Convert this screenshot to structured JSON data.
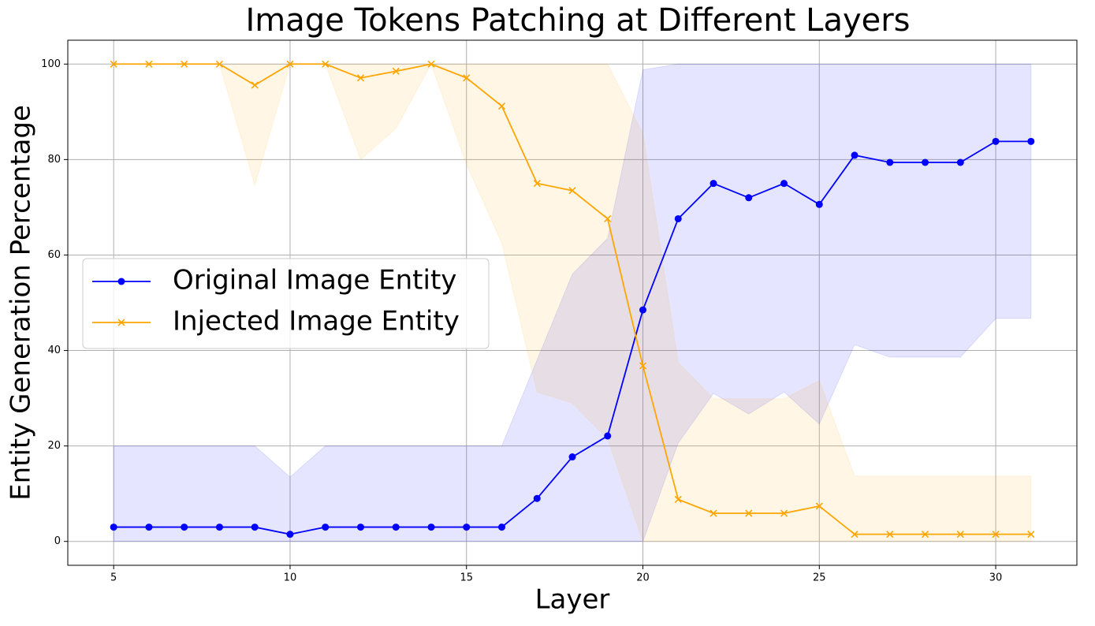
{
  "chart_data": {
    "type": "line",
    "title": "Image Tokens Patching at Different Layers",
    "x_label": "Layer",
    "y_label": "Entity Generation Percentage",
    "x": [
      5,
      6,
      7,
      8,
      9,
      10,
      11,
      12,
      13,
      14,
      15,
      16,
      17,
      18,
      19,
      20,
      21,
      22,
      23,
      24,
      25,
      26,
      27,
      28,
      29,
      30,
      31
    ],
    "series": [
      {
        "name": "Original Image Entity",
        "color": "#0000ff",
        "marker": "o",
        "values": [
          3,
          3,
          3,
          3,
          3,
          1.5,
          3,
          3,
          3,
          3,
          3,
          3,
          9,
          17.7,
          22.1,
          48.5,
          67.6,
          75,
          72,
          75,
          70.6,
          80.9,
          79.4,
          79.4,
          79.4,
          83.8,
          83.8
        ],
        "lower": [
          0,
          0,
          0,
          0,
          0,
          0,
          0,
          0,
          0,
          0,
          0,
          0,
          0,
          0,
          0,
          0,
          20.6,
          31,
          26.7,
          31.3,
          24.6,
          41.2,
          38.6,
          38.6,
          38.6,
          46.7,
          46.7
        ],
        "upper": [
          20,
          20,
          20,
          20,
          20,
          13.5,
          20,
          20,
          20,
          20,
          20,
          20,
          38,
          56,
          63.5,
          98.8,
          100,
          100,
          100,
          100,
          100,
          100,
          100,
          100,
          100,
          100,
          100
        ]
      },
      {
        "name": "Injected Image Entity",
        "color": "#ffa500",
        "marker": "x",
        "values": [
          100,
          100,
          100,
          100,
          95.6,
          100,
          100,
          97.1,
          98.5,
          100,
          97.1,
          91.2,
          75,
          73.5,
          67.6,
          36.8,
          8.8,
          5.9,
          5.9,
          5.9,
          7.4,
          1.5,
          1.5,
          1.5,
          1.5,
          1.5,
          1.5
        ],
        "lower": [
          100,
          100,
          100,
          100,
          74.6,
          100,
          100,
          80,
          86.5,
          100,
          79,
          62.5,
          31.3,
          29,
          21.5,
          0,
          0,
          0,
          0,
          0,
          0,
          0,
          0,
          0,
          0,
          0,
          0
        ],
        "upper": [
          100,
          100,
          100,
          100,
          100,
          100,
          100,
          100,
          100,
          100,
          100,
          100,
          100,
          100,
          100,
          85.5,
          37.5,
          29.9,
          29.9,
          29.9,
          33.7,
          13.7,
          13.7,
          13.7,
          13.7,
          13.7,
          13.7
        ]
      }
    ],
    "xlim": [
      3.7,
      32.3
    ],
    "ylim": [
      -5,
      105
    ],
    "xticks": [
      5,
      10,
      15,
      20,
      25,
      30
    ],
    "yticks": [
      0,
      20,
      40,
      60,
      80,
      100
    ],
    "grid": true,
    "legend": "center left"
  }
}
